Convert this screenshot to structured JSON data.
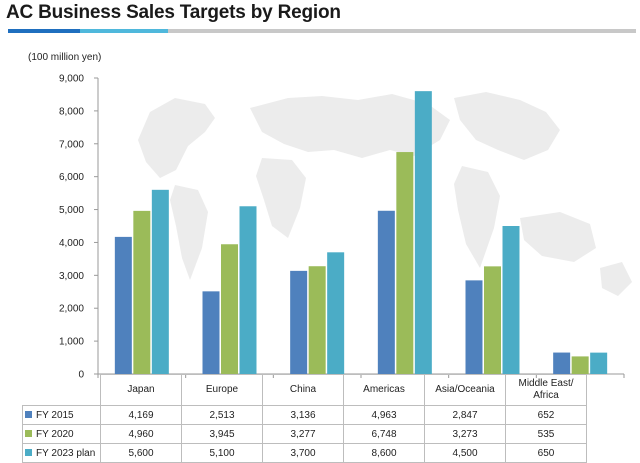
{
  "title": "AC Business Sales Targets by Region",
  "colors": {
    "title_rule_dark": "#1f6fbf",
    "title_rule_light": "#4fb8dc",
    "title_rule_gray": "#c8c8c8"
  },
  "chart_data": {
    "type": "bar",
    "title": "AC Business Sales Targets by Region",
    "ylabel": "(100 million yen)",
    "xlabel": "",
    "ylim": [
      0,
      9000
    ],
    "yticks": [
      0,
      1000,
      2000,
      3000,
      4000,
      5000,
      6000,
      7000,
      8000,
      9000
    ],
    "ytick_labels": [
      "0",
      "1,000",
      "2,000",
      "3,000",
      "4,000",
      "5,000",
      "6,000",
      "7,000",
      "8,000",
      "9,000"
    ],
    "grid": false,
    "legend_placement": "data table below chart",
    "categories": [
      "Japan",
      "Europe",
      "China",
      "Americas",
      "Asia/Oceania",
      "Middle East/ Africa"
    ],
    "category_lines": [
      [
        "Japan"
      ],
      [
        "Europe"
      ],
      [
        "China"
      ],
      [
        "Americas"
      ],
      [
        "Asia/Oceania"
      ],
      [
        "Middle East/",
        "Africa"
      ]
    ],
    "series": [
      {
        "name": "FY 2015",
        "color": "#4f81bd",
        "values": [
          4169,
          2513,
          3136,
          4963,
          2847,
          652
        ],
        "labels": [
          "4,169",
          "2,513",
          "3,136",
          "4,963",
          "2,847",
          "652"
        ]
      },
      {
        "name": "FY 2020",
        "color": "#9bbb59",
        "values": [
          4960,
          3945,
          3277,
          6748,
          3273,
          535
        ],
        "labels": [
          "4,960",
          "3,945",
          "3,277",
          "6,748",
          "3,273",
          "535"
        ]
      },
      {
        "name": "FY 2023 plan",
        "color": "#4bacc6",
        "values": [
          5600,
          5100,
          3700,
          8600,
          4500,
          650
        ],
        "labels": [
          "5,600",
          "5,100",
          "3,700",
          "8,600",
          "4,500",
          "650"
        ]
      }
    ]
  }
}
